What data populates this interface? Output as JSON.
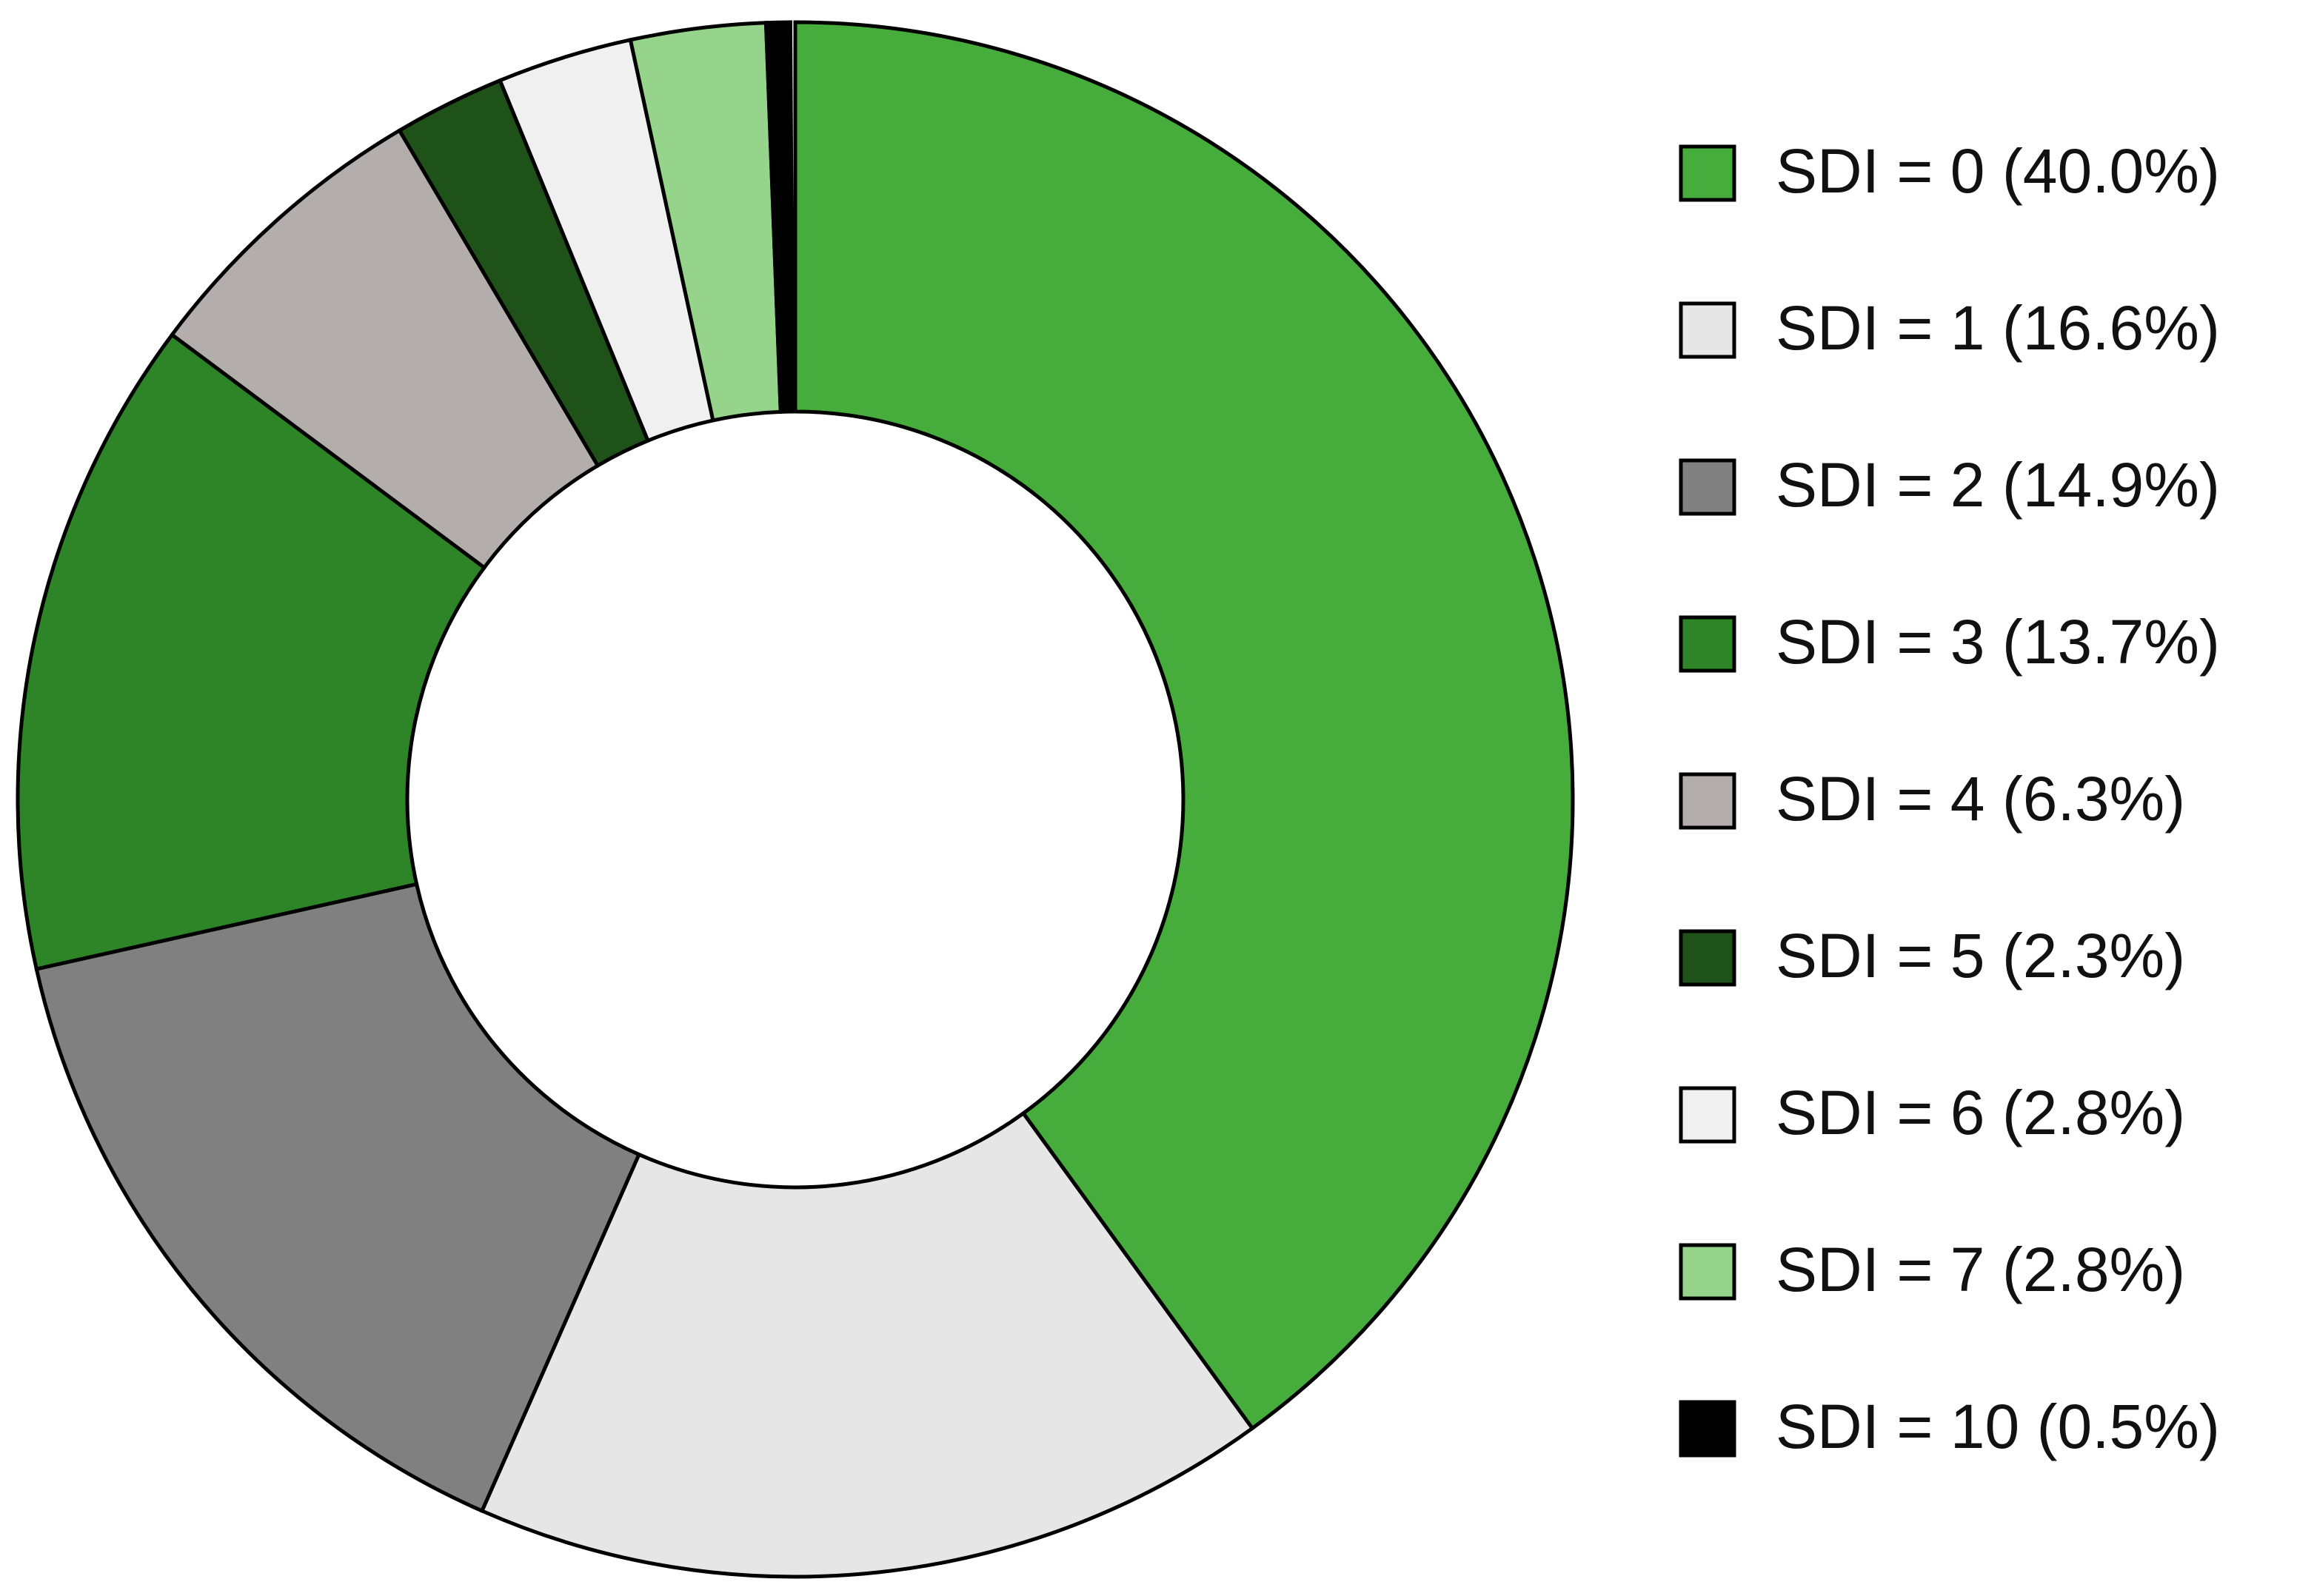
{
  "chart_data": {
    "type": "donut",
    "categories": [
      "SDI = 0 (40.0%)",
      "SDI = 1 (16.6%)",
      "SDI = 2 (14.9%)",
      "SDI = 3 (13.7%)",
      "SDI = 4 (6.3%)",
      "SDI = 5 (2.3%)",
      "SDI = 6 (2.8%)",
      "SDI = 7 (2.8%)",
      "SDI = 10 (0.5%)"
    ],
    "values": [
      40.0,
      16.6,
      14.9,
      13.7,
      6.3,
      2.3,
      2.8,
      2.8,
      0.5
    ],
    "colors": [
      "#46ad3c",
      "#e6e6e6",
      "#808080",
      "#2e8528",
      "#b3aeab",
      "#1f5218",
      "#f0f0f0",
      "#96d48c",
      "#000000"
    ],
    "legend": "right"
  }
}
